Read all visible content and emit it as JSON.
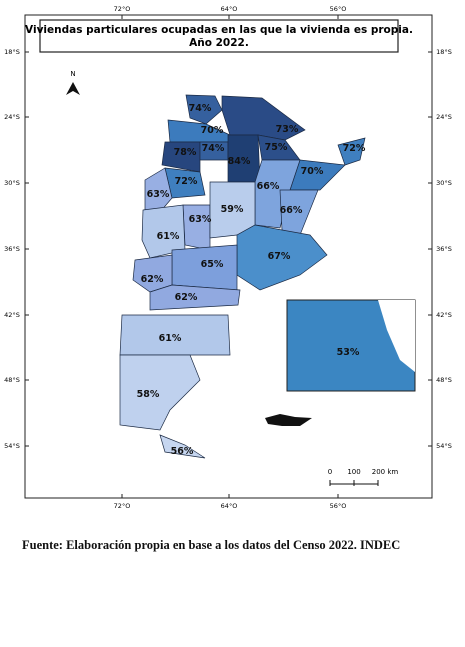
{
  "header": {
    "title_line1": "Viviendas particulares ocupadas en las que la vivienda es propia.",
    "title_line2": "Año 2022."
  },
  "map": {
    "north": "N",
    "lat_labels": [
      "18°S",
      "24°S",
      "30°S",
      "36°S",
      "42°S",
      "48°S",
      "54°S"
    ],
    "lon_labels": [
      "72°O",
      "64°O",
      "56°O"
    ],
    "regions": [
      {
        "label": "74%",
        "color": "#35609e"
      },
      {
        "label": "70%",
        "color": "#3c7bbd"
      },
      {
        "label": "73%",
        "color": "#2a4b86"
      },
      {
        "label": "78%",
        "color": "#27467e"
      },
      {
        "label": "74%",
        "color": "#35609e"
      },
      {
        "label": "84%",
        "color": "#1f3f73"
      },
      {
        "label": "75%",
        "color": "#2c4f8a"
      },
      {
        "label": "72%",
        "color": "#3f7fbf"
      },
      {
        "label": "70%",
        "color": "#3c7bbd"
      },
      {
        "label": "66%",
        "color": "#7ea4dd"
      },
      {
        "label": "66%",
        "color": "#7ea4dd"
      },
      {
        "label": "72%",
        "color": "#3f7fbf"
      },
      {
        "label": "63%",
        "color": "#98afe3"
      },
      {
        "label": "63%",
        "color": "#98afe3"
      },
      {
        "label": "59%",
        "color": "#b9cdec"
      },
      {
        "label": "61%",
        "color": "#b2c8ea"
      },
      {
        "label": "67%",
        "color": "#4b8fcb"
      },
      {
        "label": "65%",
        "color": "#7d9fdc"
      },
      {
        "label": "62%",
        "color": "#91a9e0"
      },
      {
        "label": "62%",
        "color": "#91a9e0"
      },
      {
        "label": "61%",
        "color": "#b2c8ea"
      },
      {
        "label": "58%",
        "color": "#bfd1ee"
      },
      {
        "label": "56%",
        "color": "#c6d6f0"
      },
      {
        "label": "53%",
        "color": "#c7d7f1"
      }
    ],
    "scale": {
      "labels": [
        "0",
        "100",
        "200 km"
      ]
    }
  },
  "source": "Fuente: Elaboración propia en base a los datos del Censo 2022. INDEC"
}
